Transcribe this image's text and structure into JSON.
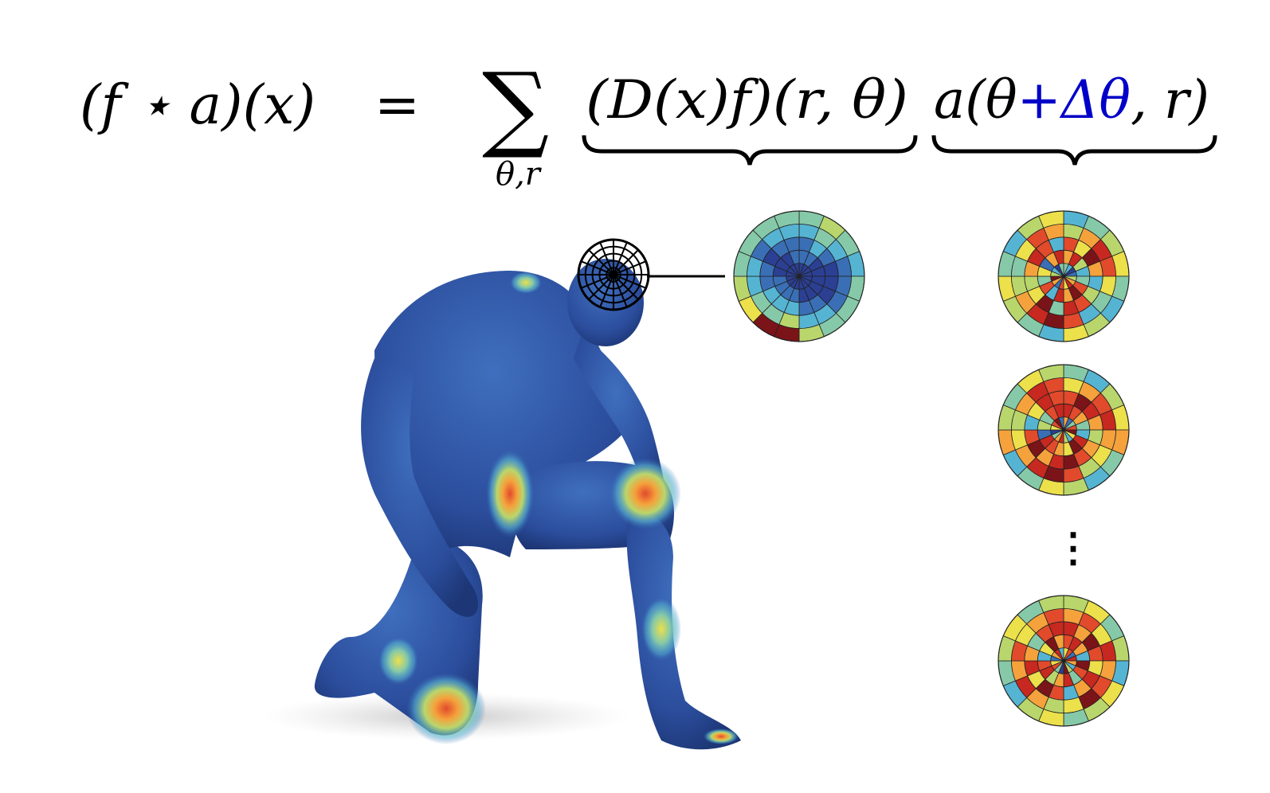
{
  "equation": {
    "lhs": "(f ⋆ a)(x)",
    "equals": "=",
    "sum_symbol": "∑",
    "sum_subscript": "θ,r",
    "term1": "(D(x)f)(r, θ)",
    "term2_prefix": "a(θ",
    "term2_plus": "+",
    "term2_delta": "Δθ",
    "term2_suffix": ", r)",
    "accent_color": "#0000c8",
    "text_color": "#000000"
  },
  "ellipsis": "⋮",
  "colormap": [
    "#2b3f93",
    "#3a6fb5",
    "#56b4d3",
    "#86c9a8",
    "#b9d66c",
    "#ece04b",
    "#f5a23c",
    "#e24a2c",
    "#c7281f",
    "#7a1418"
  ],
  "patches": {
    "rings": 5,
    "sectors": 16,
    "descriptor": [
      [
        0,
        0,
        0,
        0,
        0,
        0,
        0,
        0,
        0,
        0,
        0,
        0,
        0,
        0,
        0,
        0
      ],
      [
        1,
        1,
        0,
        0,
        0,
        0,
        0,
        0,
        1,
        1,
        1,
        1,
        0,
        0,
        0,
        1
      ],
      [
        1,
        2,
        1,
        0,
        0,
        0,
        1,
        1,
        2,
        2,
        2,
        1,
        1,
        0,
        1,
        1
      ],
      [
        2,
        3,
        2,
        1,
        1,
        1,
        2,
        2,
        4,
        3,
        3,
        2,
        2,
        1,
        2,
        2
      ],
      [
        3,
        4,
        3,
        2,
        3,
        3,
        3,
        4,
        9,
        9,
        5,
        4,
        3,
        3,
        3,
        3
      ]
    ],
    "kernels": [
      [
        [
          3,
          2,
          0,
          1,
          4,
          6,
          8,
          5,
          7,
          1,
          6,
          9,
          4,
          2,
          0,
          3
        ],
        [
          6,
          8,
          4,
          2,
          3,
          7,
          9,
          6,
          8,
          2,
          7,
          3,
          5,
          1,
          6,
          8
        ],
        [
          7,
          5,
          9,
          6,
          2,
          4,
          7,
          8,
          3,
          9,
          5,
          4,
          6,
          8,
          7,
          2
        ],
        [
          4,
          6,
          8,
          7,
          5,
          3,
          2,
          7,
          9,
          8,
          6,
          4,
          3,
          5,
          7,
          6
        ],
        [
          2,
          3,
          4,
          5,
          3,
          2,
          4,
          5,
          2,
          3,
          4,
          5,
          3,
          2,
          4,
          5
        ]
      ],
      [
        [
          6,
          1,
          3,
          7,
          9,
          5,
          2,
          4,
          8,
          6,
          3,
          0,
          5,
          7,
          9,
          1
        ],
        [
          8,
          7,
          6,
          3,
          2,
          8,
          9,
          5,
          6,
          7,
          8,
          1,
          4,
          3,
          7,
          8
        ],
        [
          7,
          9,
          8,
          6,
          4,
          6,
          7,
          9,
          8,
          6,
          9,
          7,
          2,
          5,
          8,
          7
        ],
        [
          5,
          6,
          7,
          8,
          6,
          5,
          4,
          7,
          9,
          8,
          6,
          5,
          4,
          6,
          8,
          7
        ],
        [
          3,
          2,
          4,
          5,
          6,
          3,
          2,
          4,
          5,
          3,
          2,
          6,
          4,
          3,
          5,
          4
        ]
      ],
      [
        [
          5,
          7,
          1,
          8,
          6,
          2,
          4,
          9,
          0,
          3,
          7,
          5,
          1,
          6,
          8,
          2
        ],
        [
          7,
          8,
          6,
          2,
          9,
          7,
          3,
          8,
          6,
          4,
          8,
          7,
          2,
          5,
          9,
          6
        ],
        [
          8,
          6,
          9,
          7,
          5,
          8,
          6,
          2,
          7,
          9,
          5,
          8,
          6,
          3,
          7,
          8
        ],
        [
          6,
          7,
          5,
          8,
          6,
          7,
          9,
          5,
          4,
          6,
          8,
          6,
          7,
          5,
          6,
          7
        ],
        [
          4,
          5,
          3,
          4,
          2,
          5,
          4,
          3,
          5,
          4,
          2,
          3,
          4,
          5,
          3,
          4
        ]
      ]
    ]
  }
}
